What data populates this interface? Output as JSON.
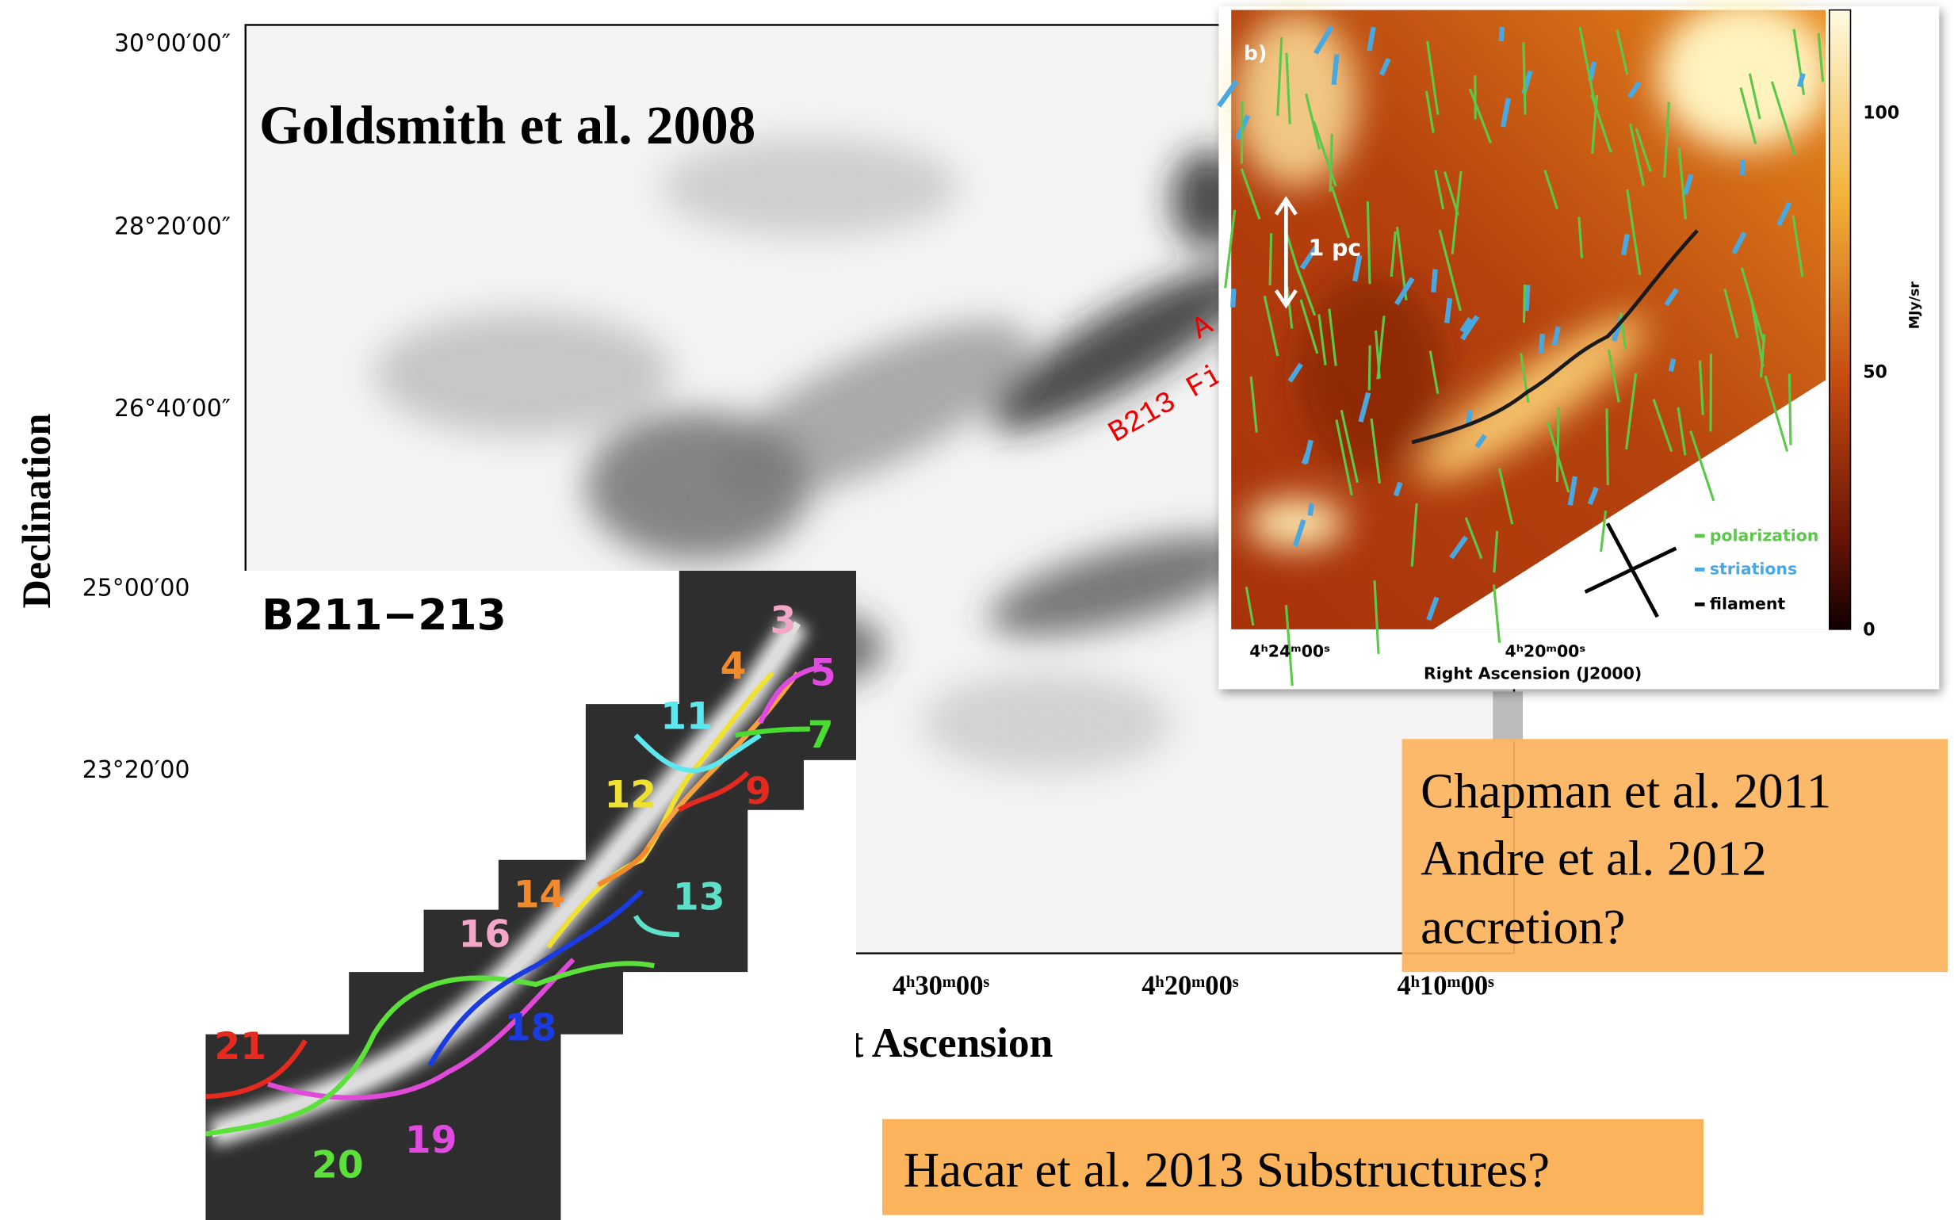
{
  "background_map": {
    "title": "Goldsmith et al. 2008",
    "y_axis_label": "Declination",
    "x_axis_label": "Right Ascension",
    "y_ticks": [
      "30°00′00″",
      "28°20′00″",
      "26°40′00″",
      "25°00′00",
      "23°20′00"
    ],
    "x_ticks": [
      "4ʰ30ᵐ00ˢ",
      "4ʰ20ᵐ00ˢ",
      "4ʰ10ᵐ00ˢ"
    ],
    "annotations": [
      "B213 Fi",
      "A"
    ]
  },
  "left_inset": {
    "title": "B211−213",
    "labels": [
      "3",
      "4",
      "5",
      "11",
      "7",
      "12",
      "9",
      "14",
      "13",
      "16",
      "18",
      "21",
      "20",
      "19"
    ]
  },
  "right_inset": {
    "panel": "b)",
    "scale_bar": "1 pc",
    "colorbar_ticks": [
      "100",
      "50",
      "0"
    ],
    "colorbar_label": "MJy/sr",
    "x_ticks": [
      "4ʰ24ᵐ00ˢ",
      "4ʰ20ᵐ00ˢ"
    ],
    "x_axis_label": "Right Ascension (J2000)",
    "legend": [
      "polarization",
      "striations",
      "filament"
    ]
  },
  "notes": {
    "box_1": [
      "Chapman et al. 2011",
      "Andre et al. 2012",
      "accretion?"
    ],
    "box_2": "Hacar et al. 2013 Substructures?"
  }
}
